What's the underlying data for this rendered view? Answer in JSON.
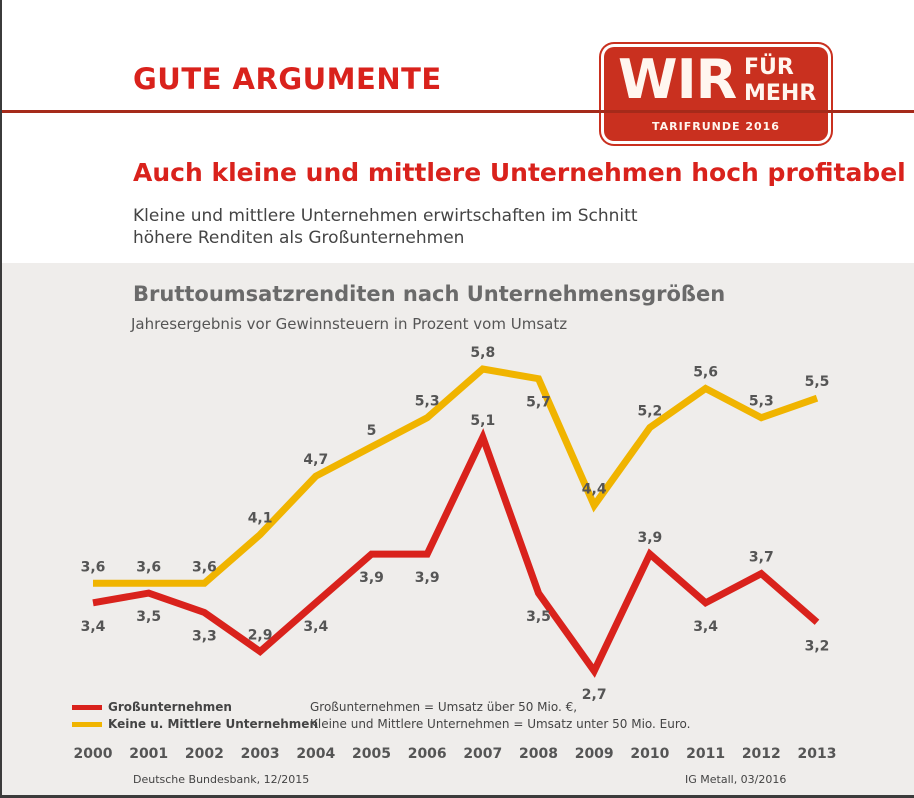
{
  "header": {
    "kicker": "GUTE ARGUMENTE",
    "logo": {
      "wir": "WIR",
      "fuer": "FÜR",
      "mehr": "MEHR",
      "tagline": "TARIFRUNDE 2016"
    },
    "headline": "Auch kleine und mittlere Unternehmen hoch profitabel",
    "subline": "Kleine und mittlere Unternehmen erwirtschaften im Schnitt höhere Renditen als Großunternehmen"
  },
  "chart_data": {
    "type": "line",
    "title": "Bruttoumsatzrenditen nach Unternehmensgrößen",
    "subtitle": "Jahresergebnis vor Gewinnsteuern in Prozent vom Umsatz",
    "x": [
      "2000",
      "2001",
      "2002",
      "2003",
      "2004",
      "2005",
      "2006",
      "2007",
      "2008",
      "2009",
      "2010",
      "2011",
      "2012",
      "2013"
    ],
    "series": [
      {
        "name": "Großunternehmen",
        "color": "#d9221c",
        "values": [
          3.4,
          3.5,
          3.3,
          2.9,
          3.4,
          3.9,
          3.9,
          5.1,
          3.5,
          2.7,
          3.9,
          3.4,
          3.7,
          3.2
        ],
        "labels": [
          "3,4",
          "3,5",
          "3,3",
          "2,9",
          "3,4",
          "3,9",
          "3,9",
          "5,1",
          "3,5",
          "2,7",
          "3,9",
          "3,4",
          "3,7",
          "3,2"
        ],
        "label_side": [
          "below",
          "below",
          "below",
          "above",
          "below",
          "below",
          "below",
          "above",
          "below",
          "below",
          "above",
          "below",
          "above",
          "below"
        ]
      },
      {
        "name": "Keine u. Mittlere Unternehmen",
        "color": "#f0b400",
        "values": [
          3.6,
          3.6,
          3.6,
          4.1,
          4.7,
          5.0,
          5.3,
          5.8,
          5.7,
          4.4,
          5.2,
          5.6,
          5.3,
          5.5
        ],
        "labels": [
          "3,6",
          "3,6",
          "3,6",
          "4,1",
          "4,7",
          "5",
          "5,3",
          "5,8",
          "5,7",
          "4,4",
          "5,2",
          "5,6",
          "5,3",
          "5,5"
        ],
        "label_side": [
          "above",
          "above",
          "above",
          "above",
          "above",
          "above",
          "above",
          "above",
          "below",
          "above",
          "above",
          "above",
          "above",
          "above"
        ]
      }
    ],
    "ylim": [
      2.5,
      6.0
    ],
    "grid": false,
    "legend": "bottom-left"
  },
  "notes": {
    "line1": "Großunternehmen = Umsatz über 50 Mio. €,",
    "line2": "Kleine und Mittlere Unternehmen = Umsatz unter 50 Mio. Euro."
  },
  "sources": {
    "left": "Deutsche Bundesbank, 12/2015",
    "right": "IG Metall, 03/2016"
  }
}
